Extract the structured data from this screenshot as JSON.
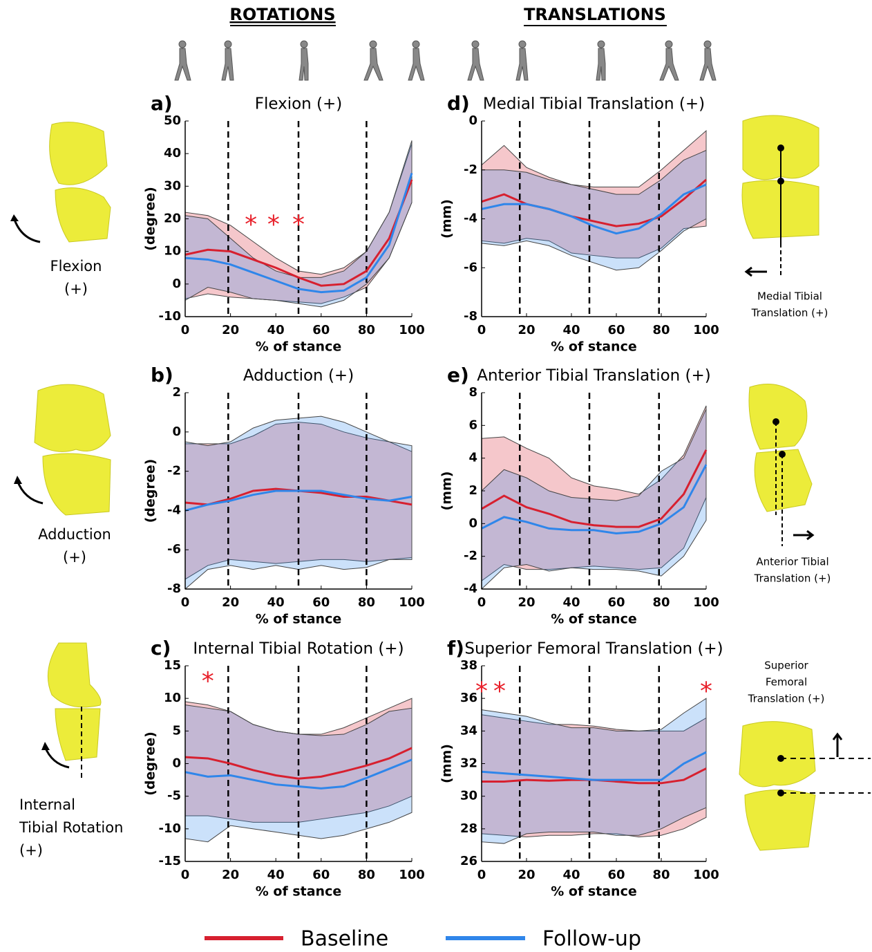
{
  "headers": [
    "ROTATIONS",
    "TRANSLATIONS"
  ],
  "legend": [
    {
      "name": "Baseline",
      "color": "#d7202f"
    },
    {
      "name": "Follow-up",
      "color": "#2f86ea"
    }
  ],
  "left_labels": [
    [
      "Flexion",
      "(+)"
    ],
    [
      "Adduction",
      "(+)"
    ],
    [
      "Internal",
      "Tibial Rotation",
      "(+)"
    ]
  ],
  "right_labels": [
    [
      "Medial Tibial",
      "Translation (+)"
    ],
    [
      "Anterior Tibial",
      "Translation (+)"
    ],
    [
      "Superior",
      "Femoral",
      "Translation (+)"
    ]
  ],
  "chart_data": [
    {
      "type": "line",
      "label": "a)",
      "title": "Flexion (+)",
      "xlabel": "% of stance",
      "ylabel": "(degree)",
      "xlim": [
        0,
        100
      ],
      "xticks": [
        0,
        20,
        40,
        60,
        80,
        100
      ],
      "ylim": [
        -10,
        50
      ],
      "yticks": [
        -10,
        0,
        10,
        20,
        30,
        40,
        50
      ],
      "vlines": [
        19,
        50,
        80
      ],
      "annotations": [
        {
          "text": "*",
          "x": 29,
          "y": 20
        },
        {
          "text": "*",
          "x": 39,
          "y": 20
        },
        {
          "text": "*",
          "x": 50,
          "y": 20
        }
      ],
      "x": [
        0,
        10,
        20,
        30,
        40,
        50,
        60,
        70,
        80,
        90,
        100
      ],
      "series": [
        {
          "values": [
            9,
            10.5,
            10,
            7.5,
            5,
            2,
            -0.5,
            0,
            4,
            14,
            32
          ],
          "upper": [
            22,
            21,
            18,
            13,
            8,
            4,
            3,
            5,
            10,
            22,
            43
          ],
          "lower": [
            -4.5,
            -3,
            -4,
            -4.5,
            -5,
            -5.5,
            -6,
            -4,
            -1,
            8,
            25
          ]
        },
        {
          "values": [
            8,
            7.5,
            6,
            3.5,
            1,
            -1.5,
            -2.5,
            -2,
            2,
            12,
            34
          ],
          "upper": [
            21,
            20,
            14,
            8,
            4,
            2,
            2,
            4,
            10,
            22,
            44
          ],
          "lower": [
            -5,
            -1,
            -2.5,
            -4.5,
            -5,
            -6,
            -7,
            -5,
            0,
            8,
            25
          ]
        }
      ]
    },
    {
      "type": "line",
      "label": "b)",
      "title": "Adduction (+)",
      "xlabel": "% of stance",
      "ylabel": "(degree)",
      "xlim": [
        0,
        100
      ],
      "xticks": [
        0,
        20,
        40,
        60,
        80,
        100
      ],
      "ylim": [
        -8,
        2
      ],
      "yticks": [
        -8,
        -6,
        -4,
        -2,
        0,
        2
      ],
      "vlines": [
        19,
        50,
        80
      ],
      "annotations": [],
      "x": [
        0,
        10,
        20,
        30,
        40,
        50,
        60,
        70,
        80,
        90,
        100
      ],
      "series": [
        {
          "values": [
            -3.6,
            -3.7,
            -3.4,
            -3.0,
            -2.9,
            -3.0,
            -3.1,
            -3.3,
            -3.3,
            -3.5,
            -3.7
          ],
          "upper": [
            -0.6,
            -0.6,
            -0.6,
            -0.2,
            0.4,
            0.5,
            0.4,
            0.0,
            -0.3,
            -0.5,
            -1.0
          ],
          "lower": [
            -7.5,
            -6.8,
            -6.5,
            -6.6,
            -6.7,
            -6.6,
            -6.5,
            -6.5,
            -6.6,
            -6.5,
            -6.4
          ]
        },
        {
          "values": [
            -4.0,
            -3.7,
            -3.5,
            -3.2,
            -3.0,
            -3.0,
            -3.0,
            -3.2,
            -3.4,
            -3.5,
            -3.3
          ],
          "upper": [
            -0.5,
            -0.7,
            -0.5,
            0.2,
            0.6,
            0.7,
            0.8,
            0.5,
            0.0,
            -0.5,
            -0.7
          ],
          "lower": [
            -8,
            -7,
            -6.8,
            -7,
            -6.8,
            -7,
            -6.8,
            -7,
            -6.9,
            -6.5,
            -6.5
          ]
        }
      ]
    },
    {
      "type": "line",
      "label": "c)",
      "title": "Internal Tibial Rotation (+)",
      "xlabel": "% of stance",
      "ylabel": "(degree)",
      "xlim": [
        0,
        100
      ],
      "xticks": [
        0,
        20,
        40,
        60,
        80,
        100
      ],
      "ylim": [
        -15,
        15
      ],
      "yticks": [
        -15,
        -10,
        -5,
        0,
        5,
        10,
        15
      ],
      "vlines": [
        19,
        50,
        80
      ],
      "annotations": [
        {
          "text": "*",
          "x": 10,
          "y": 13.5
        }
      ],
      "x": [
        0,
        10,
        20,
        30,
        40,
        50,
        60,
        70,
        80,
        90,
        100
      ],
      "series": [
        {
          "values": [
            1,
            0.8,
            0,
            -1,
            -1.8,
            -2.3,
            -2,
            -1.2,
            -0.3,
            0.8,
            2.4
          ],
          "upper": [
            9.5,
            9,
            8,
            6,
            5,
            4.5,
            4.5,
            5.5,
            7,
            8.5,
            10
          ],
          "lower": [
            -8,
            -8,
            -8.5,
            -9,
            -9,
            -9,
            -8.5,
            -8,
            -7.5,
            -6.5,
            -5
          ]
        },
        {
          "values": [
            -1.3,
            -2,
            -1.8,
            -2.5,
            -3.2,
            -3.5,
            -3.8,
            -3.5,
            -2.2,
            -0.8,
            0.6
          ],
          "upper": [
            9,
            8.5,
            8,
            6,
            5,
            4.5,
            4.3,
            4.5,
            6,
            8,
            8.5
          ],
          "lower": [
            -11.5,
            -12,
            -9.5,
            -10,
            -10.5,
            -11,
            -11.5,
            -11,
            -10,
            -9,
            -7.5
          ]
        }
      ]
    },
    {
      "type": "line",
      "label": "d)",
      "title": "Medial Tibial Translation (+)",
      "xlabel": "% of stance",
      "ylabel": "(mm)",
      "xlim": [
        0,
        100
      ],
      "xticks": [
        0,
        20,
        40,
        60,
        80,
        100
      ],
      "ylim": [
        -8,
        0
      ],
      "yticks": [
        -8,
        -6,
        -4,
        -2,
        0
      ],
      "vlines": [
        17,
        48,
        79
      ],
      "annotations": [],
      "x": [
        0,
        10,
        20,
        30,
        40,
        50,
        60,
        70,
        80,
        90,
        100
      ],
      "series": [
        {
          "values": [
            -3.3,
            -3.0,
            -3.4,
            -3.6,
            -3.9,
            -4.1,
            -4.3,
            -4.2,
            -3.9,
            -3.2,
            -2.4
          ],
          "upper": [
            -1.8,
            -1.0,
            -1.9,
            -2.3,
            -2.6,
            -2.7,
            -2.7,
            -2.7,
            -2.0,
            -1.2,
            -0.4
          ],
          "lower": [
            -4.9,
            -5.0,
            -4.8,
            -4.9,
            -5.4,
            -5.5,
            -5.6,
            -5.6,
            -5.2,
            -4.4,
            -4.3
          ]
        },
        {
          "values": [
            -3.6,
            -3.4,
            -3.4,
            -3.6,
            -3.9,
            -4.3,
            -4.6,
            -4.4,
            -3.8,
            -3.0,
            -2.6
          ],
          "upper": [
            -2.0,
            -2.0,
            -2.1,
            -2.4,
            -2.6,
            -2.8,
            -3.0,
            -3.0,
            -2.4,
            -1.6,
            -1.2
          ],
          "lower": [
            -5.0,
            -5.1,
            -4.9,
            -5.1,
            -5.5,
            -5.8,
            -6.1,
            -6.0,
            -5.3,
            -4.5,
            -4.0
          ]
        }
      ]
    },
    {
      "type": "line",
      "label": "e)",
      "title": "Anterior Tibial Translation (+)",
      "xlabel": "% of stance",
      "ylabel": "(mm)",
      "xlim": [
        0,
        100
      ],
      "xticks": [
        0,
        20,
        40,
        60,
        80,
        100
      ],
      "ylim": [
        -4,
        8
      ],
      "yticks": [
        -4,
        -2,
        0,
        2,
        4,
        6,
        8
      ],
      "vlines": [
        17,
        48,
        79
      ],
      "annotations": [],
      "x": [
        0,
        10,
        20,
        30,
        40,
        50,
        60,
        70,
        80,
        90,
        100
      ],
      "series": [
        {
          "values": [
            0.9,
            1.7,
            1.0,
            0.6,
            0.1,
            -0.1,
            -0.2,
            -0.2,
            0.3,
            1.8,
            4.5
          ],
          "upper": [
            5.2,
            5.3,
            4.6,
            4.0,
            2.8,
            2.3,
            2.1,
            1.8,
            2.7,
            4.2,
            7.2
          ],
          "lower": [
            -3.5,
            -2.5,
            -2.8,
            -2.8,
            -2.7,
            -2.6,
            -2.7,
            -2.8,
            -2.7,
            -1.5,
            1.6
          ]
        },
        {
          "values": [
            -0.3,
            0.4,
            0.1,
            -0.3,
            -0.4,
            -0.4,
            -0.6,
            -0.5,
            0.0,
            1.0,
            3.6
          ],
          "upper": [
            2.0,
            3.3,
            2.8,
            2.0,
            1.6,
            1.5,
            1.4,
            1.7,
            3.2,
            4.0,
            7.0
          ],
          "lower": [
            -4,
            -2.7,
            -2.5,
            -2.9,
            -2.7,
            -2.8,
            -2.8,
            -2.9,
            -3.2,
            -2.0,
            0.2
          ]
        }
      ]
    },
    {
      "type": "line",
      "label": "f)",
      "title": "Superior Femoral Translation (+)",
      "xlabel": "% of stance",
      "ylabel": "(mm)",
      "xlim": [
        0,
        100
      ],
      "xticks": [
        0,
        20,
        40,
        60,
        80,
        100
      ],
      "ylim": [
        26,
        38
      ],
      "yticks": [
        26,
        28,
        30,
        32,
        34,
        36,
        38
      ],
      "vlines": [
        17,
        48,
        79
      ],
      "annotations": [
        {
          "text": "*",
          "x": 0,
          "y": 36.8
        },
        {
          "text": "*",
          "x": 8,
          "y": 36.8
        },
        {
          "text": "*",
          "x": 100,
          "y": 36.8
        }
      ],
      "x": [
        0,
        10,
        20,
        30,
        40,
        50,
        60,
        70,
        80,
        90,
        100
      ],
      "series": [
        {
          "values": [
            30.9,
            30.9,
            31.0,
            30.95,
            31.0,
            31.0,
            30.9,
            30.8,
            30.8,
            31.0,
            31.7
          ],
          "upper": [
            35,
            34.8,
            34.6,
            34.4,
            34.4,
            34.3,
            34.1,
            34.0,
            34.0,
            34.0,
            34.8
          ],
          "lower": [
            27.7,
            27.6,
            27.5,
            27.6,
            27.6,
            27.7,
            27.7,
            27.5,
            27.6,
            28.0,
            28.7
          ]
        },
        {
          "values": [
            31.5,
            31.4,
            31.3,
            31.2,
            31.1,
            31.0,
            31.0,
            31.0,
            31.0,
            32.0,
            32.7
          ],
          "upper": [
            35.3,
            35.1,
            34.9,
            34.5,
            34.2,
            34.2,
            34.0,
            34.0,
            34.1,
            35.1,
            36.0
          ],
          "lower": [
            27.2,
            27.1,
            27.7,
            27.8,
            27.8,
            27.8,
            27.6,
            27.6,
            28.0,
            28.7,
            29.3
          ]
        }
      ]
    }
  ]
}
